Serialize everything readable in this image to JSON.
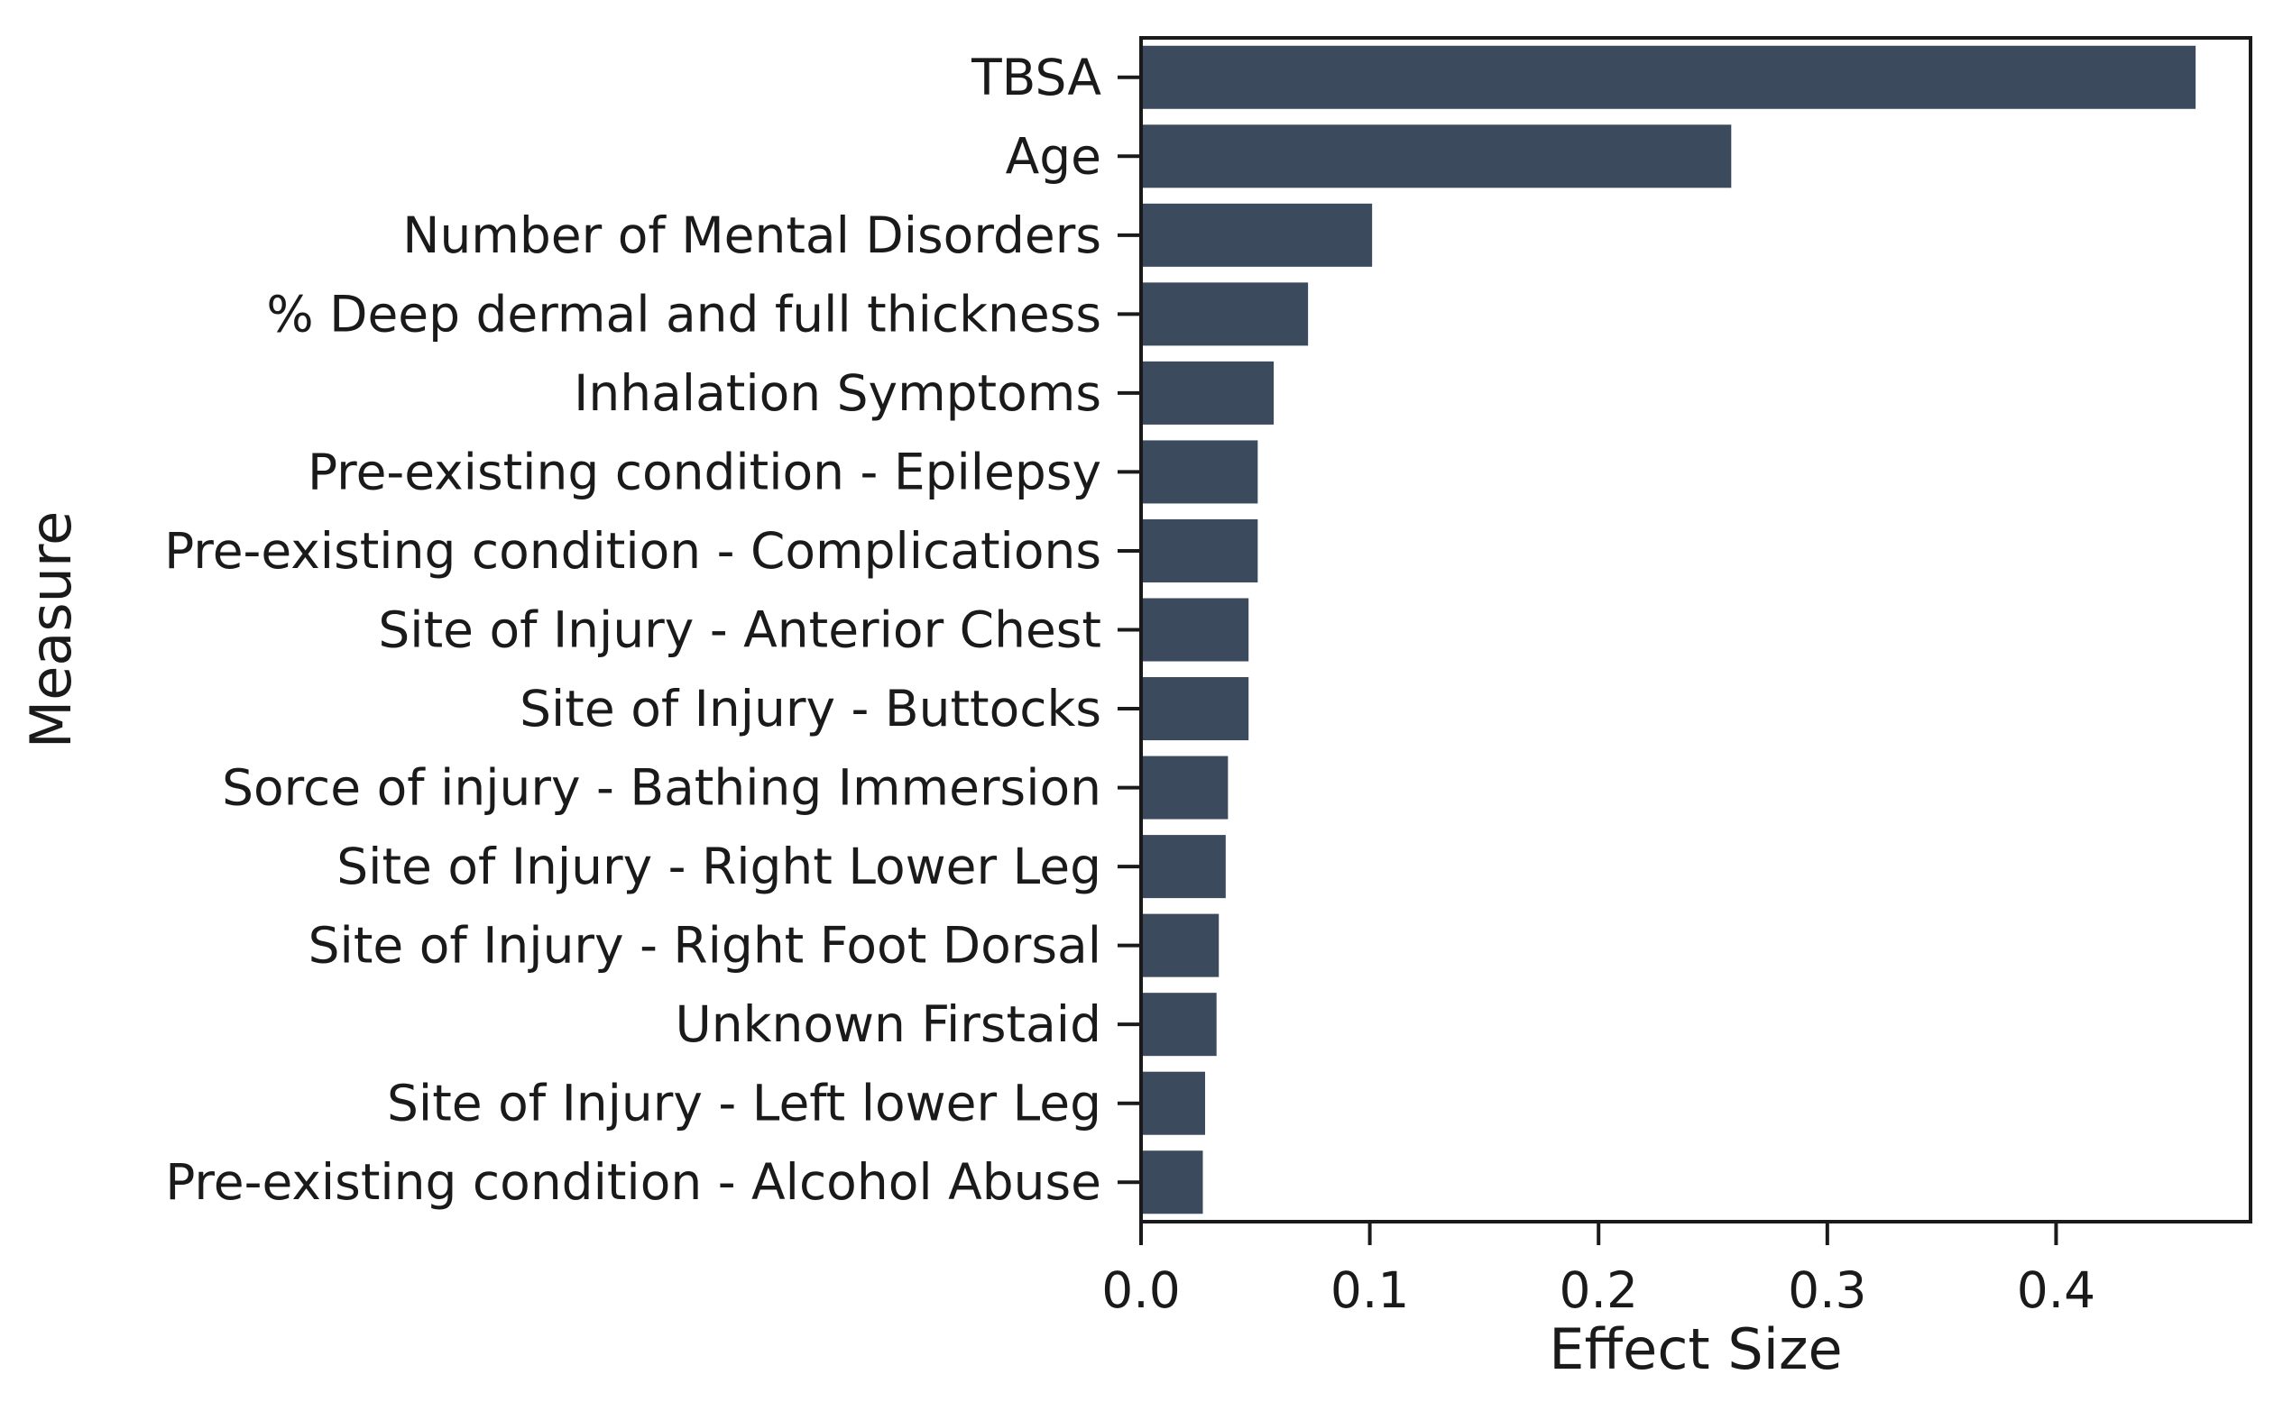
{
  "chart_data": {
    "type": "bar",
    "orientation": "horizontal",
    "title": "",
    "xlabel": "Effect Size",
    "ylabel": "Measure",
    "xlim": [
      0.0,
      0.485
    ],
    "xticks": [
      {
        "value": 0.0,
        "label": "0.0"
      },
      {
        "value": 0.1,
        "label": "0.1"
      },
      {
        "value": 0.2,
        "label": "0.2"
      },
      {
        "value": 0.3,
        "label": "0.3"
      },
      {
        "value": 0.4,
        "label": "0.4"
      }
    ],
    "bar_color": "#3b4a5c",
    "categories": [
      "TBSA",
      "Age",
      "Number of Mental Disorders",
      "% Deep dermal and full thickness",
      "Inhalation Symptoms",
      "Pre-existing condition - Epilepsy",
      "Pre-existing condition - Complications",
      "Site of Injury - Anterior Chest",
      "Site of Injury - Buttocks",
      "Sorce of injury - Bathing Immersion",
      "Site of Injury - Right Lower Leg",
      "Site of Injury - Right Foot Dorsal",
      "Unknown Firstaid",
      "Site of Injury - Left lower Leg",
      "Pre-existing condition - Alcohol Abuse"
    ],
    "values": [
      0.461,
      0.258,
      0.101,
      0.073,
      0.058,
      0.051,
      0.051,
      0.047,
      0.047,
      0.038,
      0.037,
      0.034,
      0.033,
      0.028,
      0.027
    ]
  }
}
